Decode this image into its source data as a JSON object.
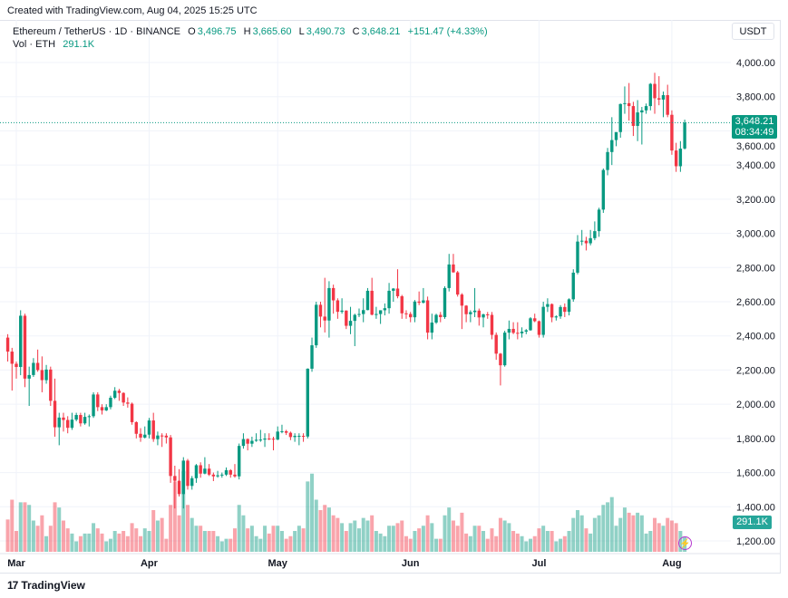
{
  "header": {
    "created": "Created with TradingView.com, Aug 04, 2025 15:25 UTC"
  },
  "legend": {
    "symbol": "Ethereum / TetherUS · 1D · BINANCE",
    "o_label": "O",
    "o": "3,496.75",
    "h_label": "H",
    "h": "3,665.60",
    "l_label": "L",
    "l": "3,490.73",
    "c_label": "C",
    "c": "3,648.21",
    "change": "+151.47 (+4.33%)",
    "vol_label": "Vol · ETH",
    "vol": "291.1K"
  },
  "currency": "USDT",
  "last_price": {
    "price": "3,648.21",
    "countdown": "08:34:49"
  },
  "last_volume": "291.1K",
  "footer": {
    "brand": "TradingView"
  },
  "colors": {
    "up": "#089981",
    "down": "#f23645",
    "grid": "#f0f3fa",
    "alert": "#b535cf"
  },
  "icons": {
    "alert": "lightning-icon",
    "logo": "tradingview-logo-icon"
  },
  "chart_data": {
    "type": "candlestick",
    "title": "Ethereum / TetherUS · 1D · BINANCE",
    "ylim": [
      1200,
      4000
    ],
    "y_ticks": [
      "1,200.00",
      "1,400.00",
      "1,600.00",
      "1,800.00",
      "2,000.00",
      "2,200.00",
      "2,400.00",
      "2,600.00",
      "2,800.00",
      "3,000.00",
      "3,200.00",
      "3,400.00",
      "3,600.00",
      "3,800.00",
      "4,000.00"
    ],
    "y_tick_values": [
      1200,
      1400,
      1600,
      1800,
      2000,
      2200,
      2400,
      2600,
      2800,
      3000,
      3200,
      3400,
      3600,
      3800,
      4000
    ],
    "x_ticks": [
      {
        "label": "Mar",
        "date": "2025-03-01"
      },
      {
        "label": "Apr",
        "date": "2025-04-01"
      },
      {
        "label": "May",
        "date": "2025-05-01"
      },
      {
        "label": "Jun",
        "date": "2025-06-01"
      },
      {
        "label": "Jul",
        "date": "2025-07-01"
      },
      {
        "label": "Aug",
        "date": "2025-08-01"
      }
    ],
    "grid": true,
    "volume_unit": "K ETH",
    "columns": [
      "date",
      "open",
      "high",
      "low",
      "close",
      "volume"
    ],
    "candles": [
      [
        "2025-02-27",
        2390,
        2410,
        2250,
        2308,
        620
      ],
      [
        "2025-02-28",
        2308,
        2330,
        2080,
        2237,
        1000
      ],
      [
        "2025-03-01",
        2237,
        2250,
        2150,
        2218,
        400
      ],
      [
        "2025-03-02",
        2218,
        2550,
        2170,
        2518,
        950
      ],
      [
        "2025-03-03",
        2518,
        2530,
        2100,
        2150,
        950
      ],
      [
        "2025-03-04",
        2150,
        2220,
        1990,
        2171,
        900
      ],
      [
        "2025-03-05",
        2171,
        2270,
        2160,
        2242,
        600
      ],
      [
        "2025-03-06",
        2242,
        2320,
        2190,
        2200,
        500
      ],
      [
        "2025-03-07",
        2200,
        2280,
        2070,
        2141,
        700
      ],
      [
        "2025-03-08",
        2141,
        2230,
        2120,
        2203,
        300
      ],
      [
        "2025-03-09",
        2203,
        2220,
        1990,
        2020,
        500
      ],
      [
        "2025-03-10",
        2020,
        2150,
        1810,
        1865,
        950
      ],
      [
        "2025-03-11",
        1865,
        1950,
        1760,
        1922,
        850
      ],
      [
        "2025-03-12",
        1922,
        1950,
        1840,
        1908,
        600
      ],
      [
        "2025-03-13",
        1908,
        1930,
        1830,
        1862,
        450
      ],
      [
        "2025-03-14",
        1862,
        1950,
        1850,
        1910,
        350
      ],
      [
        "2025-03-15",
        1910,
        1950,
        1900,
        1937,
        200
      ],
      [
        "2025-03-16",
        1937,
        1950,
        1870,
        1888,
        300
      ],
      [
        "2025-03-17",
        1888,
        1950,
        1880,
        1926,
        350
      ],
      [
        "2025-03-18",
        1926,
        1940,
        1870,
        1930,
        350
      ],
      [
        "2025-03-19",
        1930,
        2070,
        1920,
        2057,
        550
      ],
      [
        "2025-03-20",
        2057,
        2070,
        1960,
        1983,
        450
      ],
      [
        "2025-03-21",
        1983,
        2000,
        1940,
        1964,
        350
      ],
      [
        "2025-03-22",
        1964,
        2000,
        1960,
        1983,
        200
      ],
      [
        "2025-03-23",
        1983,
        2050,
        1970,
        2038,
        250
      ],
      [
        "2025-03-24",
        2038,
        2100,
        2030,
        2079,
        400
      ],
      [
        "2025-03-25",
        2079,
        2090,
        2020,
        2066,
        350
      ],
      [
        "2025-03-26",
        2066,
        2070,
        1990,
        2010,
        400
      ],
      [
        "2025-03-27",
        2010,
        2040,
        1980,
        2003,
        300
      ],
      [
        "2025-03-28",
        2003,
        2010,
        1880,
        1895,
        550
      ],
      [
        "2025-03-29",
        1895,
        1900,
        1800,
        1827,
        450
      ],
      [
        "2025-03-30",
        1827,
        1860,
        1780,
        1805,
        300
      ],
      [
        "2025-03-31",
        1805,
        1870,
        1800,
        1822,
        450
      ],
      [
        "2025-04-01",
        1822,
        1920,
        1800,
        1905,
        400
      ],
      [
        "2025-04-02",
        1905,
        1950,
        1780,
        1796,
        800
      ],
      [
        "2025-04-03",
        1796,
        1840,
        1760,
        1817,
        600
      ],
      [
        "2025-04-04",
        1817,
        1830,
        1750,
        1816,
        650
      ],
      [
        "2025-04-05",
        1816,
        1830,
        1770,
        1806,
        250
      ],
      [
        "2025-04-06",
        1806,
        1820,
        1540,
        1580,
        900
      ],
      [
        "2025-04-07",
        1580,
        1640,
        1390,
        1552,
        1350
      ],
      [
        "2025-04-08",
        1552,
        1620,
        1460,
        1474,
        700
      ],
      [
        "2025-04-09",
        1474,
        1690,
        1390,
        1670,
        1550
      ],
      [
        "2025-04-10",
        1670,
        1680,
        1500,
        1522,
        900
      ],
      [
        "2025-04-11",
        1522,
        1580,
        1500,
        1567,
        650
      ],
      [
        "2025-04-12",
        1567,
        1650,
        1540,
        1643,
        500
      ],
      [
        "2025-04-13",
        1643,
        1660,
        1570,
        1594,
        500
      ],
      [
        "2025-04-14",
        1594,
        1690,
        1590,
        1623,
        400
      ],
      [
        "2025-04-15",
        1623,
        1650,
        1580,
        1588,
        400
      ],
      [
        "2025-04-16",
        1588,
        1600,
        1550,
        1578,
        400
      ],
      [
        "2025-04-17",
        1578,
        1610,
        1570,
        1584,
        300
      ],
      [
        "2025-04-18",
        1584,
        1600,
        1570,
        1588,
        200
      ],
      [
        "2025-04-19",
        1588,
        1630,
        1580,
        1614,
        250
      ],
      [
        "2025-04-20",
        1614,
        1620,
        1570,
        1588,
        250
      ],
      [
        "2025-04-21",
        1588,
        1650,
        1570,
        1578,
        450
      ],
      [
        "2025-04-22",
        1578,
        1770,
        1560,
        1756,
        900
      ],
      [
        "2025-04-23",
        1756,
        1830,
        1740,
        1796,
        700
      ],
      [
        "2025-04-24",
        1796,
        1800,
        1730,
        1769,
        450
      ],
      [
        "2025-04-25",
        1769,
        1810,
        1750,
        1786,
        500
      ],
      [
        "2025-04-26",
        1786,
        1830,
        1780,
        1792,
        300
      ],
      [
        "2025-04-27",
        1792,
        1850,
        1780,
        1793,
        250
      ],
      [
        "2025-04-28",
        1793,
        1830,
        1750,
        1799,
        500
      ],
      [
        "2025-04-29",
        1799,
        1830,
        1790,
        1798,
        350
      ],
      [
        "2025-04-30",
        1798,
        1810,
        1730,
        1793,
        500
      ],
      [
        "2025-05-01",
        1793,
        1870,
        1790,
        1840,
        500
      ],
      [
        "2025-05-02",
        1840,
        1880,
        1830,
        1842,
        400
      ],
      [
        "2025-05-03",
        1842,
        1850,
        1820,
        1833,
        250
      ],
      [
        "2025-05-04",
        1833,
        1840,
        1790,
        1808,
        300
      ],
      [
        "2025-05-05",
        1808,
        1830,
        1780,
        1815,
        400
      ],
      [
        "2025-05-06",
        1815,
        1830,
        1760,
        1815,
        500
      ],
      [
        "2025-05-07",
        1815,
        1830,
        1780,
        1811,
        450
      ],
      [
        "2025-05-08",
        1811,
        2210,
        1800,
        2208,
        1350
      ],
      [
        "2025-05-09",
        2208,
        2390,
        2190,
        2345,
        1500
      ],
      [
        "2025-05-10",
        2345,
        2600,
        2330,
        2582,
        1000
      ],
      [
        "2025-05-11",
        2582,
        2600,
        2450,
        2513,
        800
      ],
      [
        "2025-05-12",
        2513,
        2740,
        2420,
        2490,
        900
      ],
      [
        "2025-05-13",
        2490,
        2720,
        2390,
        2680,
        850
      ],
      [
        "2025-05-14",
        2680,
        2700,
        2530,
        2608,
        700
      ],
      [
        "2025-05-15",
        2608,
        2620,
        2500,
        2541,
        650
      ],
      [
        "2025-05-16",
        2541,
        2620,
        2530,
        2548,
        550
      ],
      [
        "2025-05-17",
        2548,
        2550,
        2440,
        2459,
        400
      ],
      [
        "2025-05-18",
        2459,
        2570,
        2410,
        2488,
        550
      ],
      [
        "2025-05-19",
        2488,
        2530,
        2340,
        2523,
        600
      ],
      [
        "2025-05-20",
        2523,
        2560,
        2510,
        2528,
        450
      ],
      [
        "2025-05-21",
        2528,
        2620,
        2480,
        2551,
        650
      ],
      [
        "2025-05-22",
        2551,
        2680,
        2550,
        2664,
        600
      ],
      [
        "2025-05-23",
        2664,
        2740,
        2520,
        2524,
        700
      ],
      [
        "2025-05-24",
        2524,
        2570,
        2500,
        2528,
        400
      ],
      [
        "2025-05-25",
        2528,
        2550,
        2470,
        2550,
        350
      ],
      [
        "2025-05-26",
        2550,
        2590,
        2520,
        2562,
        300
      ],
      [
        "2025-05-27",
        2562,
        2710,
        2530,
        2664,
        500
      ],
      [
        "2025-05-28",
        2664,
        2680,
        2600,
        2677,
        500
      ],
      [
        "2025-05-29",
        2677,
        2790,
        2620,
        2632,
        550
      ],
      [
        "2025-05-30",
        2632,
        2640,
        2500,
        2532,
        600
      ],
      [
        "2025-05-31",
        2532,
        2550,
        2500,
        2528,
        300
      ],
      [
        "2025-06-01",
        2528,
        2540,
        2480,
        2509,
        250
      ],
      [
        "2025-06-02",
        2509,
        2610,
        2480,
        2601,
        400
      ],
      [
        "2025-06-03",
        2601,
        2660,
        2580,
        2594,
        450
      ],
      [
        "2025-06-04",
        2594,
        2680,
        2590,
        2608,
        500
      ],
      [
        "2025-06-05",
        2608,
        2630,
        2380,
        2419,
        700
      ],
      [
        "2025-06-06",
        2419,
        2530,
        2380,
        2478,
        550
      ],
      [
        "2025-06-07",
        2478,
        2530,
        2470,
        2523,
        250
      ],
      [
        "2025-06-08",
        2523,
        2540,
        2480,
        2510,
        250
      ],
      [
        "2025-06-09",
        2510,
        2690,
        2500,
        2680,
        700
      ],
      [
        "2025-06-10",
        2680,
        2880,
        2660,
        2818,
        850
      ],
      [
        "2025-06-11",
        2818,
        2880,
        2770,
        2772,
        600
      ],
      [
        "2025-06-12",
        2772,
        2780,
        2630,
        2642,
        500
      ],
      [
        "2025-06-13",
        2642,
        2650,
        2440,
        2577,
        750
      ],
      [
        "2025-06-14",
        2577,
        2580,
        2480,
        2527,
        350
      ],
      [
        "2025-06-15",
        2527,
        2550,
        2480,
        2539,
        300
      ],
      [
        "2025-06-16",
        2539,
        2680,
        2510,
        2548,
        500
      ],
      [
        "2025-06-17",
        2548,
        2560,
        2460,
        2508,
        500
      ],
      [
        "2025-06-18",
        2508,
        2530,
        2450,
        2526,
        400
      ],
      [
        "2025-06-19",
        2526,
        2540,
        2500,
        2523,
        250
      ],
      [
        "2025-06-20",
        2523,
        2540,
        2380,
        2406,
        450
      ],
      [
        "2025-06-21",
        2406,
        2420,
        2260,
        2296,
        300
      ],
      [
        "2025-06-22",
        2296,
        2300,
        2110,
        2228,
        650
      ],
      [
        "2025-06-23",
        2228,
        2430,
        2220,
        2419,
        600
      ],
      [
        "2025-06-24",
        2419,
        2490,
        2380,
        2441,
        550
      ],
      [
        "2025-06-25",
        2441,
        2480,
        2410,
        2418,
        400
      ],
      [
        "2025-06-26",
        2418,
        2480,
        2380,
        2415,
        350
      ],
      [
        "2025-06-27",
        2415,
        2450,
        2390,
        2425,
        300
      ],
      [
        "2025-06-28",
        2425,
        2440,
        2410,
        2433,
        200
      ],
      [
        "2025-06-29",
        2433,
        2510,
        2430,
        2503,
        250
      ],
      [
        "2025-06-30",
        2503,
        2530,
        2480,
        2486,
        300
      ],
      [
        "2025-07-01",
        2486,
        2490,
        2390,
        2406,
        450
      ],
      [
        "2025-07-02",
        2406,
        2600,
        2390,
        2570,
        500
      ],
      [
        "2025-07-03",
        2570,
        2620,
        2540,
        2586,
        400
      ],
      [
        "2025-07-04",
        2586,
        2590,
        2480,
        2508,
        400
      ],
      [
        "2025-07-05",
        2508,
        2520,
        2490,
        2514,
        200
      ],
      [
        "2025-07-06",
        2514,
        2580,
        2500,
        2569,
        250
      ],
      [
        "2025-07-07",
        2569,
        2590,
        2510,
        2541,
        300
      ],
      [
        "2025-07-08",
        2541,
        2620,
        2520,
        2614,
        400
      ],
      [
        "2025-07-09",
        2614,
        2790,
        2600,
        2770,
        650
      ],
      [
        "2025-07-10",
        2770,
        2990,
        2760,
        2952,
        800
      ],
      [
        "2025-07-11",
        2952,
        3020,
        2930,
        2957,
        700
      ],
      [
        "2025-07-12",
        2957,
        2980,
        2900,
        2942,
        450
      ],
      [
        "2025-07-13",
        2942,
        3020,
        2930,
        2972,
        350
      ],
      [
        "2025-07-14",
        2972,
        3070,
        2960,
        3013,
        650
      ],
      [
        "2025-07-15",
        3013,
        3150,
        2980,
        3139,
        700
      ],
      [
        "2025-07-16",
        3139,
        3380,
        3120,
        3371,
        900
      ],
      [
        "2025-07-17",
        3371,
        3500,
        3340,
        3476,
        950
      ],
      [
        "2025-07-18",
        3476,
        3680,
        3400,
        3546,
        1050
      ],
      [
        "2025-07-19",
        3546,
        3590,
        3510,
        3593,
        500
      ],
      [
        "2025-07-20",
        3593,
        3760,
        3560,
        3757,
        650
      ],
      [
        "2025-07-21",
        3757,
        3860,
        3700,
        3762,
        850
      ],
      [
        "2025-07-22",
        3762,
        3880,
        3660,
        3745,
        750
      ],
      [
        "2025-07-23",
        3745,
        3770,
        3570,
        3629,
        700
      ],
      [
        "2025-07-24",
        3629,
        3780,
        3540,
        3708,
        750
      ],
      [
        "2025-07-25",
        3708,
        3740,
        3520,
        3720,
        700
      ],
      [
        "2025-07-26",
        3720,
        3760,
        3700,
        3745,
        350
      ],
      [
        "2025-07-27",
        3745,
        3880,
        3720,
        3875,
        400
      ],
      [
        "2025-07-28",
        3875,
        3940,
        3700,
        3791,
        650
      ],
      [
        "2025-07-29",
        3791,
        3920,
        3750,
        3783,
        550
      ],
      [
        "2025-07-30",
        3783,
        3830,
        3680,
        3809,
        500
      ],
      [
        "2025-07-31",
        3809,
        3870,
        3680,
        3694,
        650
      ],
      [
        "2025-08-01",
        3694,
        3720,
        3460,
        3485,
        600
      ],
      [
        "2025-08-02",
        3485,
        3530,
        3360,
        3393,
        550
      ],
      [
        "2025-08-03",
        3393,
        3540,
        3360,
        3496,
        400
      ],
      [
        "2025-08-04",
        3496.75,
        3665.6,
        3490.73,
        3648.21,
        291.1
      ]
    ]
  }
}
